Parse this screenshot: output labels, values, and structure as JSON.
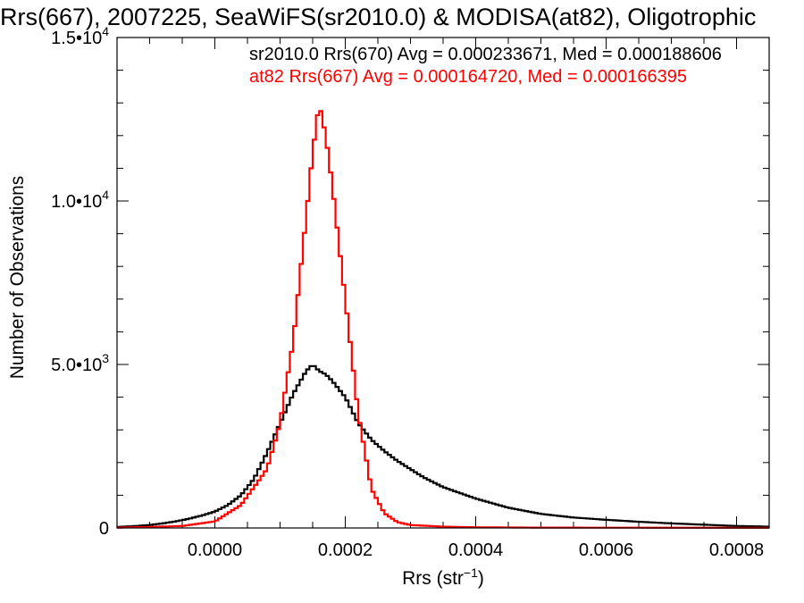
{
  "chart_data": {
    "type": "line",
    "title": "Rrs(667), 2007225, SeaWiFS(sr2010.0) & MODISA(at82), Oligotrophic",
    "xlabel_main": "Rrs (str",
    "xlabel_sup": "−1",
    "xlabel_end": ")",
    "ylabel": "Number of Observations",
    "xlim": [
      -0.00015,
      0.00085
    ],
    "ylim": [
      0,
      15000
    ],
    "x_ticks": [
      {
        "value": 0.0,
        "label": "0.0000"
      },
      {
        "value": 0.0002,
        "label": "0.0002"
      },
      {
        "value": 0.0004,
        "label": "0.0004"
      },
      {
        "value": 0.0006,
        "label": "0.0006"
      },
      {
        "value": 0.0008,
        "label": "0.0008"
      }
    ],
    "y_ticks": [
      {
        "value": 0,
        "base": "0",
        "exp": ""
      },
      {
        "value": 5000,
        "base": "5.0•10",
        "exp": "3"
      },
      {
        "value": 10000,
        "base": "1.0•10",
        "exp": "4"
      },
      {
        "value": 15000,
        "base": "1.5•10",
        "exp": "4"
      }
    ],
    "legend": [
      {
        "text": "sr2010.0 Rrs(670) Avg = 0.000233671, Med = 0.000188606",
        "color": "#000000"
      },
      {
        "text": "at82 Rrs(667) Avg = 0.000164720, Med = 0.000166395",
        "color": "#ff0000"
      }
    ],
    "series": [
      {
        "color": "#000000",
        "points": [
          [
            -0.00015,
            30
          ],
          [
            -0.00012,
            60
          ],
          [
            -0.0001,
            90
          ],
          [
            -8e-05,
            140
          ],
          [
            -6e-05,
            200
          ],
          [
            -4e-05,
            280
          ],
          [
            -2e-05,
            380
          ],
          [
            0.0,
            500
          ],
          [
            2e-05,
            700
          ],
          [
            4e-05,
            1000
          ],
          [
            6e-05,
            1500
          ],
          [
            8e-05,
            2300
          ],
          [
            0.0001,
            3200
          ],
          [
            0.00012,
            4100
          ],
          [
            0.00014,
            4800
          ],
          [
            0.00015,
            5000
          ],
          [
            0.00016,
            4800
          ],
          [
            0.00017,
            4700
          ],
          [
            0.00018,
            4500
          ],
          [
            0.0002,
            4000
          ],
          [
            0.00022,
            3200
          ],
          [
            0.00024,
            2700
          ],
          [
            0.00026,
            2350
          ],
          [
            0.00028,
            2050
          ],
          [
            0.0003,
            1800
          ],
          [
            0.00032,
            1550
          ],
          [
            0.00035,
            1250
          ],
          [
            0.0004,
            900
          ],
          [
            0.00045,
            620
          ],
          [
            0.0005,
            430
          ],
          [
            0.00055,
            320
          ],
          [
            0.0006,
            250
          ],
          [
            0.00065,
            190
          ],
          [
            0.0007,
            140
          ],
          [
            0.00075,
            100
          ],
          [
            0.0008,
            60
          ],
          [
            0.00085,
            40
          ]
        ]
      },
      {
        "color": "#ff0000",
        "points": [
          [
            -0.00015,
            10
          ],
          [
            -0.0001,
            30
          ],
          [
            -5e-05,
            60
          ],
          [
            0.0,
            200
          ],
          [
            4e-05,
            700
          ],
          [
            8e-05,
            1800
          ],
          [
            0.0001,
            3200
          ],
          [
            0.00012,
            5700
          ],
          [
            0.00014,
            9500
          ],
          [
            0.00015,
            11500
          ],
          [
            0.00016,
            13000
          ],
          [
            0.00017,
            12000
          ],
          [
            0.00018,
            10500
          ],
          [
            0.0002,
            7000
          ],
          [
            0.00022,
            3500
          ],
          [
            0.00024,
            1200
          ],
          [
            0.00026,
            450
          ],
          [
            0.00028,
            180
          ],
          [
            0.0003,
            90
          ],
          [
            0.00035,
            40
          ],
          [
            0.0004,
            20
          ],
          [
            0.0005,
            10
          ],
          [
            0.00085,
            5
          ]
        ]
      }
    ]
  }
}
